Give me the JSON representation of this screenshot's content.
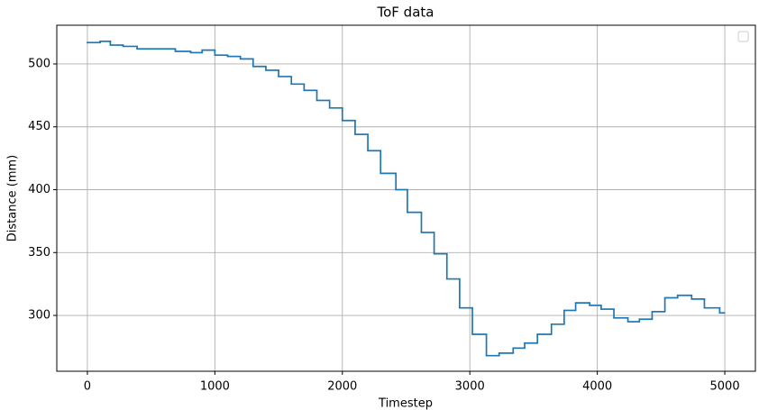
{
  "chart_data": {
    "type": "line",
    "step": "post",
    "title": "ToF data",
    "x_label": "Timestep",
    "y_label": "Distance (mm)",
    "x": [
      0,
      100,
      180,
      280,
      390,
      690,
      810,
      900,
      1000,
      1100,
      1200,
      1300,
      1400,
      1500,
      1600,
      1700,
      1800,
      1900,
      2000,
      2100,
      2200,
      2300,
      2420,
      2510,
      2620,
      2720,
      2820,
      2920,
      3020,
      3130,
      3230,
      3340,
      3430,
      3530,
      3640,
      3740,
      3830,
      3940,
      4030,
      4130,
      4240,
      4330,
      4430,
      4530,
      4630,
      4740,
      4840,
      4960,
      4990
    ],
    "series": [
      {
        "color": "#1f77b4",
        "values": [
          517,
          518,
          515,
          514,
          512,
          510,
          509,
          511,
          507,
          506,
          504,
          498,
          495,
          490,
          484,
          479,
          471,
          465,
          455,
          444,
          431,
          413,
          400,
          382,
          366,
          349,
          329,
          306,
          285,
          268,
          270,
          274,
          278,
          285,
          293,
          304,
          310,
          308,
          305,
          298,
          295,
          297,
          303,
          314,
          316,
          313,
          306,
          302,
          302
        ]
      }
    ],
    "xlim": [
      -240,
      5240
    ],
    "ylim": [
      255.6,
      530.8
    ],
    "xticks": [
      0,
      1000,
      2000,
      3000,
      4000,
      5000
    ],
    "yticks": [
      300,
      350,
      400,
      450,
      500
    ],
    "grid": true,
    "legend": "upper right"
  }
}
